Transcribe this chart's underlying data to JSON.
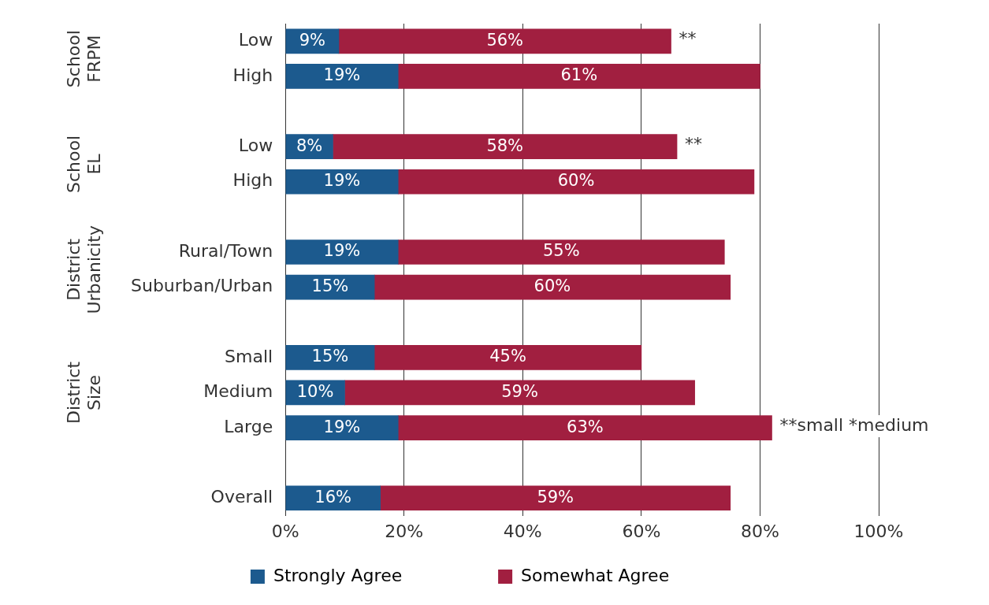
{
  "chart_data": {
    "type": "bar",
    "orientation": "horizontal",
    "stacked": true,
    "categories": [
      "Low",
      "High",
      null,
      "Low",
      "High",
      null,
      "Rural/Town",
      "Suburban/Urban",
      null,
      "Small",
      "Medium",
      "Large",
      null,
      "Overall"
    ],
    "series": [
      {
        "name": "Strongly Agree",
        "color": "#1c5a8e",
        "values": [
          9,
          19,
          null,
          8,
          19,
          null,
          19,
          15,
          null,
          15,
          10,
          19,
          null,
          16
        ],
        "value_labels": [
          "9%",
          "19%",
          null,
          "8%",
          "19%",
          null,
          "19%",
          "15%",
          null,
          "15%",
          "10%",
          "19%",
          null,
          "16%"
        ]
      },
      {
        "name": "Somewhat Agree",
        "color": "#a11f40",
        "values": [
          56,
          61,
          null,
          58,
          60,
          null,
          55,
          60,
          null,
          45,
          59,
          63,
          null,
          59
        ],
        "value_labels": [
          "56%",
          "61%",
          null,
          "58%",
          "60%",
          null,
          "55%",
          "60%",
          null,
          "45%",
          "59%",
          "63%",
          null,
          "59%"
        ]
      }
    ],
    "xlim": [
      0,
      100
    ],
    "xticks": [
      {
        "value": 0,
        "label": "0%"
      },
      {
        "value": 20,
        "label": "20%"
      },
      {
        "value": 40,
        "label": "40%"
      },
      {
        "value": 60,
        "label": "60%"
      },
      {
        "value": 80,
        "label": "80%"
      },
      {
        "value": 100,
        "label": "100%"
      }
    ],
    "grid": "x",
    "legend": "bottom",
    "annotations": [
      "School FRPM",
      "School EL",
      "District Urbanicity",
      "District Size",
      {
        "text": "**",
        "x": 65,
        "y": "Low"
      },
      {
        "text": "**",
        "x": 66
      },
      {
        "text": "**small *medium",
        "x": 82,
        "y": "Large"
      }
    ]
  }
}
